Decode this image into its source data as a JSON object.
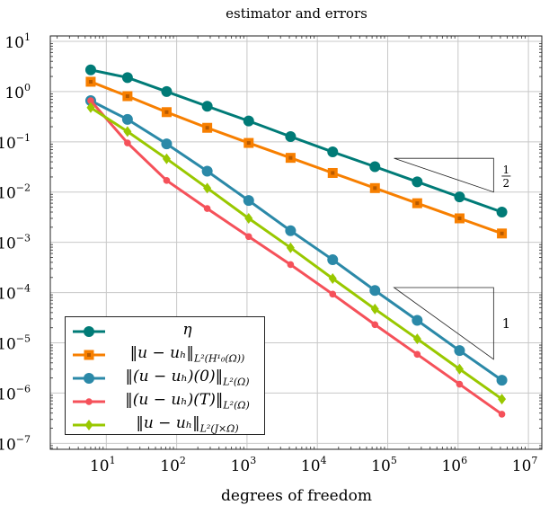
{
  "chart_data": {
    "type": "line",
    "title": "estimator and errors",
    "xlabel": "degrees of freedom",
    "ylabel": "",
    "xscale": "log",
    "yscale": "log",
    "xlim": [
      1.6,
      15500000
    ],
    "ylim": [
      7.6e-08,
      12.8
    ],
    "grid": true,
    "legend_position": "bottom-left",
    "x_ticks": [
      10,
      100,
      1000,
      10000,
      100000,
      1000000,
      10000000
    ],
    "x_tick_labels": [
      "10",
      "10",
      "10",
      "10",
      "10",
      "10",
      "10"
    ],
    "x_tick_exps": [
      "1",
      "2",
      "3",
      "4",
      "5",
      "6",
      "7"
    ],
    "y_ticks": [
      10,
      1,
      0.1,
      0.01,
      0.001,
      0.0001,
      1e-05,
      1e-06,
      1e-07
    ],
    "y_tick_exps": [
      "1",
      "0",
      "−1",
      "−2",
      "−3",
      "−4",
      "−5",
      "−6",
      "−7"
    ],
    "x": [
      6,
      20,
      72,
      272,
      1056,
      4160,
      16512,
      65792,
      262656,
      1049600,
      4196352
    ],
    "series": [
      {
        "name": "η",
        "sub": "",
        "color": "#007b77",
        "marker": "circle",
        "values": [
          2.7,
          1.9,
          1.0,
          0.51,
          0.26,
          0.127,
          0.063,
          0.032,
          0.016,
          0.008,
          0.004
        ]
      },
      {
        "name": "‖u − uₕ‖",
        "sub": "L²(H¹₀(Ω))",
        "color": "#f77f00",
        "marker": "square",
        "values": [
          1.57,
          0.81,
          0.39,
          0.19,
          0.095,
          0.048,
          0.024,
          0.012,
          0.006,
          0.003,
          0.0015
        ]
      },
      {
        "name": "‖(u − uₕ)(0)‖",
        "sub": "L²(Ω)",
        "color": "#2b89a8",
        "marker": "circle",
        "values": [
          0.66,
          0.28,
          0.091,
          0.026,
          0.0068,
          0.0017,
          0.00045,
          0.00011,
          2.8e-05,
          7e-06,
          1.8e-06
        ]
      },
      {
        "name": "‖(u − uₕ)(T)‖",
        "sub": "L²(Ω)",
        "color": "#f5515a",
        "marker": "star",
        "values": [
          0.66,
          0.095,
          0.017,
          0.0047,
          0.0013,
          0.00036,
          9.3e-05,
          2.3e-05,
          5.9e-06,
          1.5e-06,
          3.8e-07
        ]
      },
      {
        "name": "‖u − uₕ‖",
        "sub": "L²(J×Ω)",
        "color": "#99c800",
        "marker": "diamond",
        "values": [
          0.48,
          0.16,
          0.046,
          0.012,
          0.003,
          0.00078,
          0.00019,
          4.7e-05,
          1.2e-05,
          3e-06,
          7.6e-07
        ]
      }
    ],
    "annotations": [
      {
        "type": "slope-triangle",
        "label_num": "1",
        "label_den": "2",
        "x": [
          123000,
          3200000
        ],
        "y": [
          0.047,
          0.01
        ]
      },
      {
        "type": "slope-triangle",
        "label_num": "1",
        "label_den": "",
        "x": [
          123000,
          3200000
        ],
        "y": [
          0.000126,
          4.7e-06
        ]
      }
    ]
  }
}
